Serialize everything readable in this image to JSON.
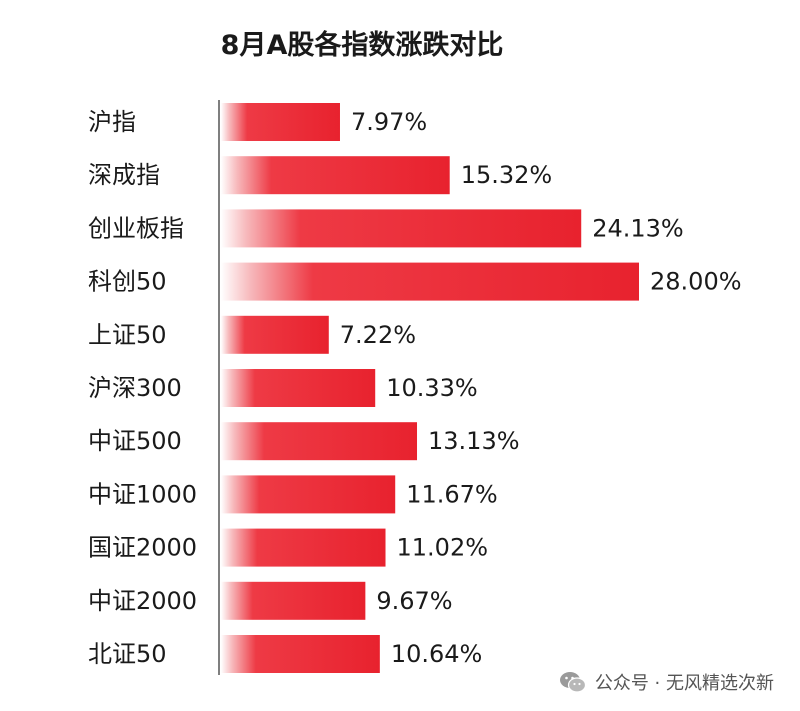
{
  "chart_data": {
    "type": "bar",
    "orientation": "horizontal",
    "title": "8月A股各指数涨跌对比",
    "categories": [
      "沪指",
      "深成指",
      "创业板指",
      "科创50",
      "上证50",
      "沪深300",
      "中证500",
      "中证1000",
      "国证2000",
      "中证2000",
      "北证50"
    ],
    "values": [
      7.97,
      15.32,
      24.13,
      28.0,
      7.22,
      10.33,
      13.13,
      11.67,
      11.02,
      9.67,
      10.64
    ],
    "value_labels": [
      "7.97%",
      "15.32%",
      "24.13%",
      "28.00%",
      "7.22%",
      "10.33%",
      "13.13%",
      "11.67%",
      "11.02%",
      "9.67%",
      "10.64%"
    ],
    "unit": "%",
    "xlim": [
      0,
      28
    ],
    "grid": false,
    "legend": "none",
    "bar_color": "#e8222e"
  },
  "footer": {
    "source": "公众号 · 无风精选次新",
    "icon": "wechat-icon"
  }
}
